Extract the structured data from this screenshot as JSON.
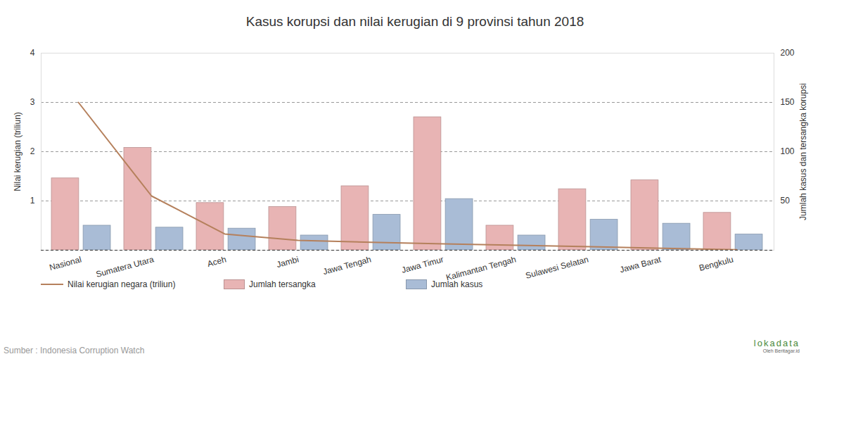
{
  "chart_data": {
    "type": "bar",
    "title": "Kasus korupsi dan nilai kerugian di 9 provinsi tahun 2018",
    "categories": [
      "Nasional",
      "Sumatera Utara",
      "Aceh",
      "Jambi",
      "Jawa Tengah",
      "Jawa Timur",
      "Kalimantan Tengah",
      "Sulawesi Selatan",
      "Jawa Barat",
      "Bengkulu"
    ],
    "series": [
      {
        "name": "Nilai kerugian negara (triliun)",
        "type": "line",
        "color": "#b5805c",
        "values": [
          3.0,
          1.1,
          0.33,
          0.2,
          0.16,
          0.13,
          0.1,
          0.07,
          0.04,
          0.01
        ]
      },
      {
        "name": "Jumlah tersangka",
        "type": "bar",
        "color": "#e8b4b4",
        "axis": "y2",
        "values": [
          73,
          104,
          48,
          44,
          65,
          135,
          25,
          62,
          71,
          38
        ]
      },
      {
        "name": "Jumlah kasus",
        "type": "bar",
        "color": "#a9bcd6",
        "axis": "y2",
        "values": [
          25,
          23,
          22,
          15,
          36,
          52,
          15,
          31,
          27,
          16
        ]
      }
    ],
    "y_label": "Nilai kerugian (triliun)",
    "y2_label": "Jumlah kasus dan tersangka korupsi",
    "ylim": [
      0,
      4
    ],
    "yticks": [
      1,
      2,
      3,
      4
    ],
    "y2lim": [
      0,
      200
    ],
    "y2ticks": [
      50,
      100,
      150,
      200
    ],
    "grid": true,
    "legend": "bottom",
    "source": "Sumber : Indonesia Corruption Watch",
    "credit": [
      "lokadata",
      "Oleh Beritagar.id"
    ]
  }
}
